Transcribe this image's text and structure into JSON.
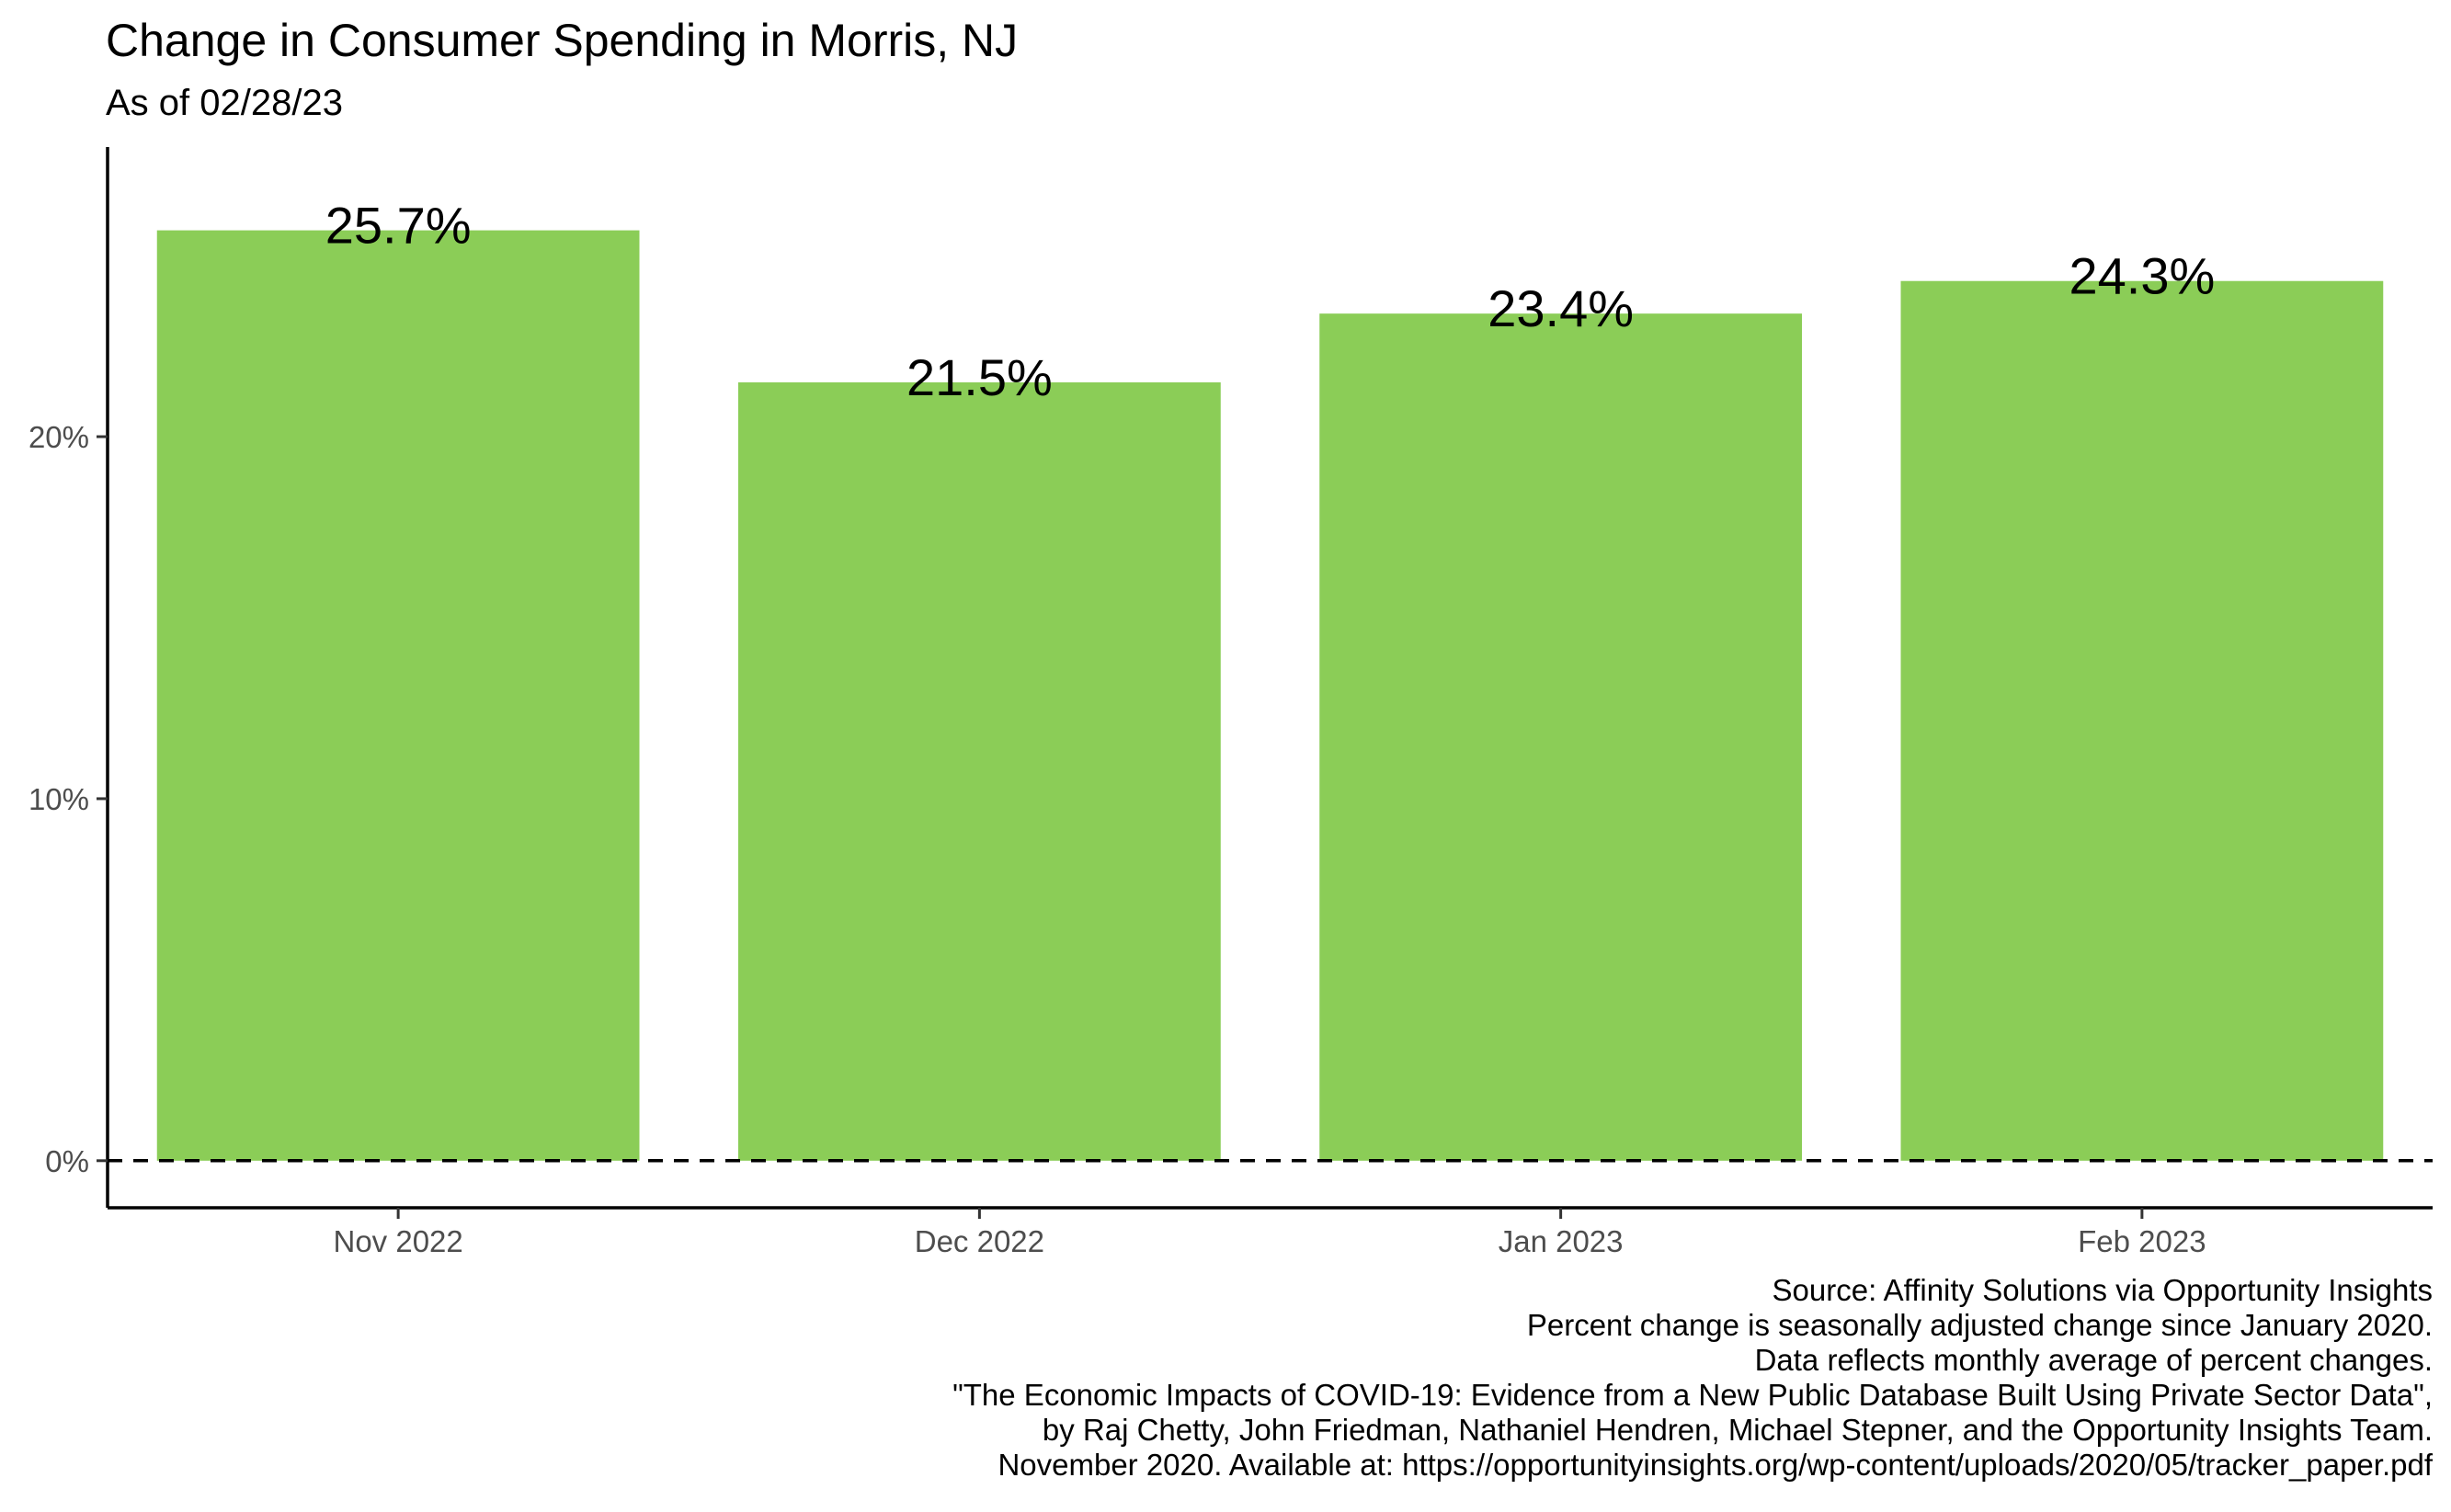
{
  "chart_data": {
    "type": "bar",
    "title": "Change in Consumer Spending in Morris, NJ",
    "subtitle": "As of 02/28/23",
    "categories": [
      "Nov 2022",
      "Dec 2022",
      "Jan 2023",
      "Feb 2023"
    ],
    "values": [
      25.7,
      21.5,
      23.4,
      24.3
    ],
    "value_labels": [
      "25.7%",
      "21.5%",
      "23.4%",
      "24.3%"
    ],
    "ylim": [
      -1.3,
      28.0
    ],
    "yticks": [
      0,
      10,
      20
    ],
    "ytick_labels": [
      "0%",
      "10%",
      "20%"
    ],
    "xlabel": "",
    "ylabel": "",
    "reference_line": {
      "y": 0,
      "style": "dashed"
    },
    "grid": false,
    "bar_color": "#8bcd57",
    "caption": [
      "Source: Affinity Solutions via Opportunity Insights",
      "Percent change is seasonally adjusted change since January 2020.",
      "Data reflects monthly average of percent changes.",
      "\"The Economic Impacts of COVID-19: Evidence from a New Public Database Built Using Private Sector Data\",",
      "by Raj Chetty, John Friedman, Nathaniel Hendren, Michael Stepner, and the Opportunity Insights Team.",
      "November 2020. Available at: https://opportunityinsights.org/wp-content/uploads/2020/05/tracker_paper.pdf"
    ]
  }
}
